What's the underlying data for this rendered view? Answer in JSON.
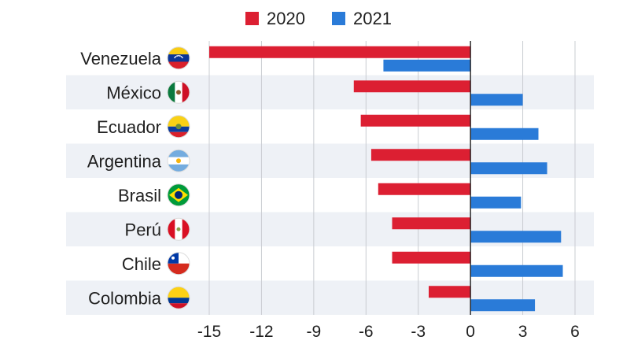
{
  "chart_data": {
    "type": "bar",
    "orientation": "horizontal",
    "title": "",
    "xlabel": "",
    "ylabel": "",
    "categories": [
      "Venezuela",
      "México",
      "Ecuador",
      "Argentina",
      "Brasil",
      "Perú",
      "Chile",
      "Colombia"
    ],
    "series": [
      {
        "name": "2020",
        "color": "#dc1f32",
        "values": [
          -15.0,
          -6.7,
          -6.3,
          -5.7,
          -5.3,
          -4.5,
          -4.5,
          -2.4
        ]
      },
      {
        "name": "2021",
        "color": "#2a7bd8",
        "values": [
          -5.0,
          3.0,
          3.9,
          4.4,
          2.9,
          5.2,
          5.3,
          3.7
        ]
      }
    ],
    "xlim": [
      -15,
      6
    ],
    "xticks": [
      -15,
      -12,
      -9,
      -6,
      -3,
      0,
      3,
      6
    ],
    "xtick_labels": [
      "-15",
      "-12",
      "-9",
      "-6",
      "-3",
      "0",
      "3",
      "6"
    ],
    "grid": "vertical",
    "legend_position": "top",
    "row_band_color": "#eef1f6",
    "flags": [
      "venezuela-flag-icon",
      "mexico-flag-icon",
      "ecuador-flag-icon",
      "argentina-flag-icon",
      "brazil-flag-icon",
      "peru-flag-icon",
      "chile-flag-icon",
      "colombia-flag-icon"
    ]
  }
}
